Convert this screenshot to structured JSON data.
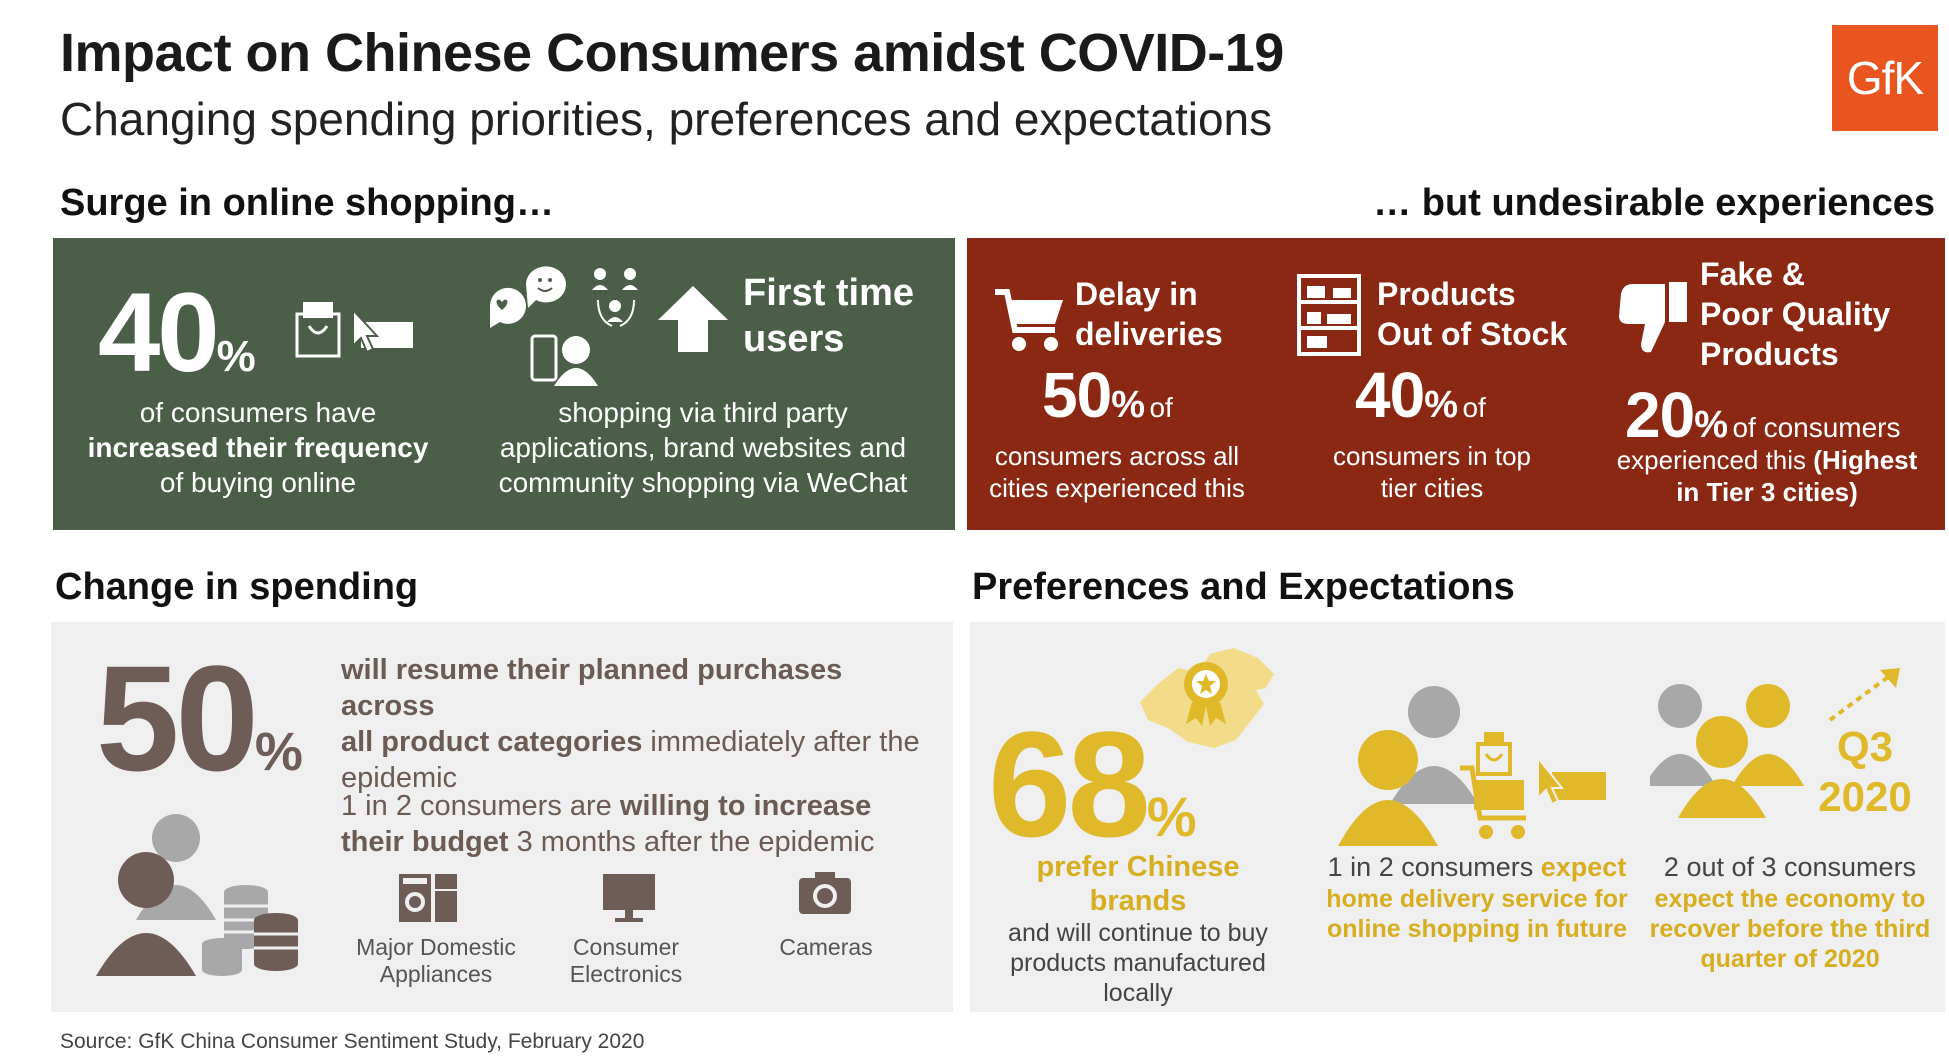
{
  "header": {
    "title": "Impact on Chinese Consumers amidst COVID-19",
    "subtitle": "Changing spending priorities, preferences and expectations",
    "logo_text": "GfK"
  },
  "surge": {
    "heading": "Surge in online shopping…",
    "stat_value": "40",
    "stat_unit": "%",
    "stat_text_1": "of consumers have",
    "stat_text_bold": "increased their frequency",
    "stat_text_2": "of buying online",
    "first_time_line1": "First time",
    "first_time_line2": "users",
    "first_time_text_1": "shopping via third party",
    "first_time_text_2": "applications, brand websites and",
    "first_time_text_3": "community shopping via WeChat"
  },
  "undesirable": {
    "heading": "… but undesirable experiences",
    "items": [
      {
        "title_1": "Delay in",
        "title_2": "deliveries",
        "value": "50",
        "unit": "%",
        "of": "of",
        "text_1": "consumers across all",
        "text_2": "cities experienced this"
      },
      {
        "title_1": "Products",
        "title_2": "Out of Stock",
        "value": "40",
        "unit": "%",
        "of": "of",
        "text_1": "consumers in top",
        "text_2": "tier cities"
      },
      {
        "title_1": "Fake &",
        "title_2": "Poor Quality",
        "title_3": "Products",
        "value": "20",
        "unit": "%",
        "of": "of consumers",
        "text_1": "experienced this",
        "text_bold_1": "(Highest",
        "text_bold_2": "in Tier 3 cities)"
      }
    ]
  },
  "spending": {
    "heading": "Change in spending",
    "stat_value": "50",
    "stat_unit": "%",
    "line1_bold": "will resume their planned purchases across",
    "line2_bold": "all product categories",
    "line2_rest": " immediately after the",
    "line3": "epidemic",
    "budget_1": "1 in 2 consumers are ",
    "budget_bold_1": "willing to increase",
    "budget_bold_2": "their budget",
    "budget_2": " 3 months after the epidemic",
    "categories": [
      {
        "line1": "Major Domestic",
        "line2": "Appliances"
      },
      {
        "line1": "Consumer",
        "line2": "Electronics"
      },
      {
        "line1": "Cameras",
        "line2": ""
      }
    ]
  },
  "preferences": {
    "heading": "Preferences and Expectations",
    "stat_value": "68",
    "stat_unit": "%",
    "pref_gold": "prefer Chinese brands",
    "pref_1": "and will continue to buy",
    "pref_2": "products manufactured",
    "pref_3": "locally",
    "delivery_1": "1 in 2 consumers ",
    "delivery_gold_1": "expect",
    "delivery_gold_2": "home delivery service for",
    "delivery_gold_3": "online shopping in future",
    "economy_1": "2 out of 3 consumers",
    "economy_gold_1": "expect the economy to",
    "economy_gold_2": "recover before the third",
    "economy_gold_3": "quarter of 2020",
    "q3_line1": "Q3",
    "q3_line2": "2020"
  },
  "source": "Source: GfK China Consumer Sentiment Study, February 2020"
}
